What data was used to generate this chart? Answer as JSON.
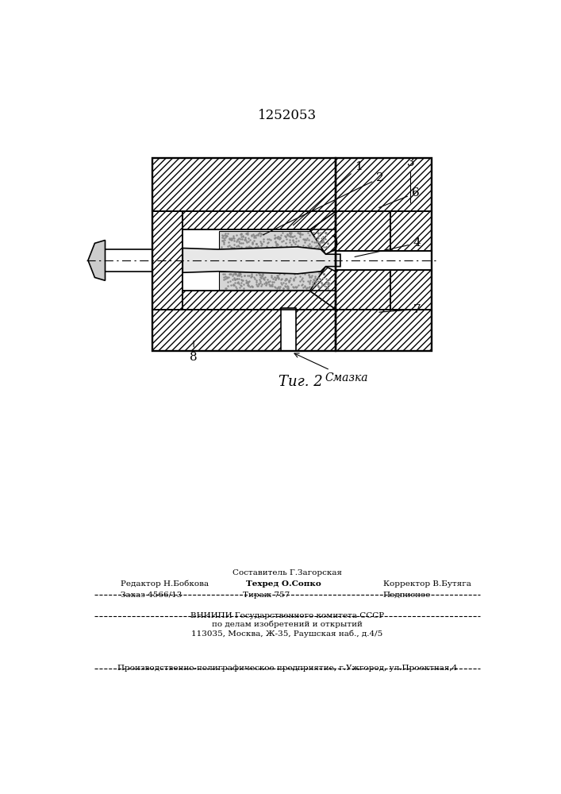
{
  "title": "1252053",
  "fig_label": "Τиг. 2",
  "smazka_label": "Смазка",
  "bg_color": "#ffffff",
  "line_color": "#000000",
  "editor_line": "Редактор Н.Бобкова",
  "sostavitel_line": "Составитель Г.Загорская",
  "tehred_line": "Техред О.Сопко",
  "korrektor_line": "Корректор В.Бутяга",
  "zakaz_line": "Заказ 4566/13",
  "tirazh_line": "Тираж 757",
  "podpisnoe_line": "Подписное",
  "vniiipi_line": "ВНИИПИ Государственного комитета СССР",
  "podelam_line": "по делам изобретений и открытий",
  "address_line": "113035, Москва, Ж-35, Раушская наб., д.4/5",
  "print_line": "Производственно-полиграфическое предприятие, г.Ужгород, ул.Проектная,4"
}
